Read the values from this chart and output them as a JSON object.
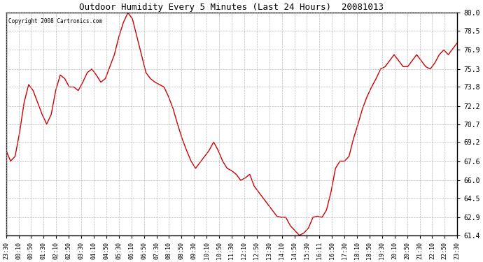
{
  "title": "Outdoor Humidity Every 5 Minutes (Last 24 Hours)  20081013",
  "copyright": "Copyright 2008 Cartronics.com",
  "line_color": "#cc0000",
  "bg_color": "#ffffff",
  "plot_bg_color": "#ffffff",
  "grid_color": "#aaaaaa",
  "ylim": [
    61.4,
    80.0
  ],
  "yticks": [
    61.4,
    62.9,
    64.5,
    66.0,
    67.6,
    69.2,
    70.7,
    72.2,
    73.8,
    75.3,
    76.9,
    78.5,
    80.0
  ],
  "xtick_labels": [
    "23:30",
    "00:10",
    "00:50",
    "01:30",
    "02:10",
    "02:50",
    "03:30",
    "04:10",
    "04:50",
    "05:30",
    "06:10",
    "06:50",
    "07:30",
    "08:10",
    "08:50",
    "09:30",
    "10:10",
    "10:50",
    "11:30",
    "12:10",
    "12:50",
    "13:30",
    "14:10",
    "14:50",
    "15:30",
    "16:11",
    "16:50",
    "17:30",
    "18:10",
    "18:50",
    "19:30",
    "20:10",
    "20:50",
    "21:30",
    "22:10",
    "22:50",
    "23:30"
  ],
  "humidity": [
    68.5,
    67.6,
    68.0,
    70.0,
    72.5,
    74.0,
    73.5,
    72.5,
    71.5,
    70.7,
    71.5,
    73.5,
    74.8,
    74.5,
    73.8,
    73.8,
    73.5,
    74.2,
    75.0,
    75.3,
    74.8,
    74.2,
    74.5,
    75.5,
    76.5,
    78.0,
    79.2,
    80.0,
    79.5,
    78.0,
    76.5,
    75.0,
    74.5,
    74.2,
    74.0,
    73.8,
    73.0,
    72.0,
    70.7,
    69.5,
    68.5,
    67.6,
    67.0,
    67.5,
    68.0,
    68.5,
    69.2,
    68.5,
    67.6,
    67.0,
    66.8,
    66.5,
    66.0,
    66.2,
    66.5,
    65.5,
    65.0,
    64.5,
    64.0,
    63.5,
    63.0,
    62.9,
    62.9,
    62.2,
    61.8,
    61.4,
    61.6,
    62.0,
    62.9,
    63.0,
    62.9,
    63.5,
    65.0,
    67.0,
    67.6,
    67.6,
    68.0,
    69.5,
    70.7,
    72.0,
    73.0,
    73.8,
    74.5,
    75.3,
    75.5,
    76.0,
    76.5,
    76.0,
    75.5,
    75.5,
    76.0,
    76.5,
    76.0,
    75.5,
    75.3,
    75.8,
    76.5,
    76.9,
    76.5,
    77.0,
    77.5
  ]
}
